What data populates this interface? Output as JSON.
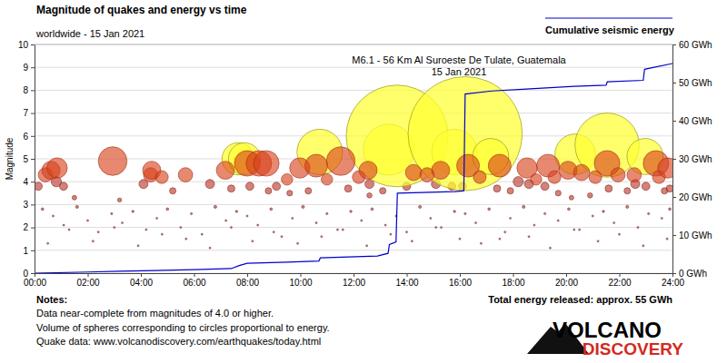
{
  "chart_data": {
    "type": "scatter",
    "title": "Magnitude of quakes and energy vs time",
    "subtitle": "worldwide - 15 Jan 2021",
    "ylabel": "Magnitude",
    "annotations": [
      "M6.1 - 56 Km Al Suroeste De Tulate, Guatemala",
      "15 Jan 2021"
    ],
    "notes_title": "Notes:",
    "notes": [
      "Data near-complete from magnitudes of 4.0 or higher.",
      "Volume of spheres corresponding to circles proportional to energy.",
      "Quake data: www.volcanodiscovery.com/earthquakes/today.html"
    ],
    "total_energy": "Total energy released: approx. 55 GWh",
    "logo": [
      "VOLCANO",
      "DISCOVERY"
    ],
    "grid": true,
    "legend": "top-right",
    "xlim": [
      0,
      24
    ],
    "xticks": [
      {
        "value": 0,
        "label": "00:00"
      },
      {
        "value": 2,
        "label": "02:00"
      },
      {
        "value": 4,
        "label": "04:00"
      },
      {
        "value": 6,
        "label": "06:00"
      },
      {
        "value": 8,
        "label": "08:00"
      },
      {
        "value": 10,
        "label": "10:00"
      },
      {
        "value": 12,
        "label": "12:00"
      },
      {
        "value": 14,
        "label": "14:00"
      },
      {
        "value": 16,
        "label": "16:00"
      },
      {
        "value": 18,
        "label": "18:00"
      },
      {
        "value": 20,
        "label": "20:00"
      },
      {
        "value": 22,
        "label": "22:00"
      },
      {
        "value": 24,
        "label": "24:00"
      }
    ],
    "ylim": [
      0,
      10
    ],
    "yticks": [
      0,
      1,
      2,
      3,
      4,
      5,
      6,
      7,
      8,
      9,
      10
    ],
    "y2lim": [
      0,
      60
    ],
    "y2ticks": [
      {
        "value": 0,
        "label": "0 GWh"
      },
      {
        "value": 10,
        "label": "10 GWh"
      },
      {
        "value": 20,
        "label": "20 GWh"
      },
      {
        "value": 30,
        "label": "30 GWh"
      },
      {
        "value": 40,
        "label": "40 GWh"
      },
      {
        "value": 50,
        "label": "50 GWh"
      },
      {
        "value": 60,
        "label": "60 GWh"
      }
    ],
    "series": [
      {
        "type": "scatter",
        "marker": "circle",
        "color": "#a0413c",
        "x": [
          0.3,
          0.7,
          1.1,
          1.6,
          2.0,
          2.4,
          2.9,
          3.3,
          3.7,
          4.2,
          4.6,
          5.0,
          5.5,
          5.9,
          6.3,
          6.8,
          7.2,
          7.6,
          8.0,
          8.4,
          8.9,
          9.3,
          9.7,
          10.1,
          10.6,
          11.0,
          11.4,
          11.9,
          12.3,
          12.7,
          13.2,
          13.6,
          14.0,
          14.5,
          14.9,
          15.3,
          15.8,
          16.2,
          16.6,
          17.1,
          17.5,
          17.9,
          18.4,
          18.8,
          19.2,
          19.7,
          20.1,
          20.5,
          21.0,
          21.4,
          21.8,
          22.3,
          22.7,
          23.1,
          23.6,
          23.9,
          0.5,
          1.3,
          2.2,
          3.0,
          3.9,
          4.8,
          5.7,
          6.6,
          7.4,
          8.2,
          9.0,
          9.9,
          10.8,
          11.6,
          12.5,
          13.4,
          14.2,
          15.1,
          16.0,
          16.8,
          17.7,
          18.6,
          19.4,
          20.3,
          21.2,
          22.0,
          22.9,
          23.8
        ],
        "values": [
          2.8,
          2.5,
          2.1,
          2.9,
          2.3,
          1.8,
          2.6,
          2.2,
          2.7,
          1.9,
          2.4,
          2.8,
          2.0,
          2.6,
          1.7,
          2.9,
          2.3,
          2.7,
          2.5,
          2.1,
          2.8,
          1.6,
          2.4,
          2.9,
          2.2,
          2.6,
          1.9,
          2.7,
          2.3,
          2.8,
          2.1,
          2.5,
          1.8,
          2.9,
          2.4,
          2.0,
          2.7,
          2.6,
          2.2,
          2.8,
          1.5,
          2.4,
          2.9,
          2.1,
          2.6,
          2.3,
          2.8,
          1.9,
          2.5,
          2.7,
          2.2,
          2.9,
          2.0,
          2.6,
          2.4,
          2.8,
          1.3,
          1.9,
          1.4,
          2.0,
          1.2,
          1.7,
          1.5,
          1.1,
          2.0,
          1.4,
          1.8,
          1.3,
          1.6,
          1.9,
          1.2,
          1.7,
          1.4,
          2.0,
          1.5,
          1.3,
          1.8,
          1.6,
          1.1,
          1.9,
          1.4,
          1.7,
          1.2,
          1.5
        ]
      },
      {
        "type": "scatter",
        "marker": "circle",
        "color": "#b8352a",
        "x": [
          0.14,
          0.82,
          1.09,
          1.5,
          3.2,
          4.1,
          5.2,
          6.6,
          7.4,
          8.1,
          8.8,
          9.1,
          9.6,
          10.3,
          11.8,
          12.6,
          12.6,
          13.1,
          14.0,
          15.1,
          15.7,
          16.1,
          17.4,
          17.9,
          18.2,
          18.6,
          19.2,
          19.7,
          20.2,
          20.9,
          21.6,
          22.3,
          22.6,
          23.0,
          23.7,
          23.9
        ],
        "values": [
          3.8,
          4.0,
          3.8,
          3.3,
          3.2,
          3.9,
          3.6,
          3.9,
          3.7,
          3.8,
          3.6,
          3.8,
          3.5,
          3.6,
          3.7,
          3.9,
          3.4,
          3.6,
          3.8,
          3.9,
          3.8,
          3.8,
          3.7,
          3.6,
          4.0,
          3.9,
          3.8,
          3.5,
          3.3,
          3.4,
          3.7,
          3.6,
          3.9,
          3.8,
          3.6,
          3.7
        ]
      },
      {
        "type": "scatter",
        "marker": "circle",
        "color": "#ffff33",
        "x": [
          7.66,
          7.9,
          10.73,
          13.33,
          13.64,
          15.8,
          16.2,
          17.16,
          20.34,
          21.54,
          22.97
        ],
        "values": [
          5.0,
          5.0,
          5.3,
          5.4,
          6.0,
          5.3,
          6.1,
          5.1,
          5.2,
          5.6,
          5.1
        ]
      },
      {
        "type": "scatter",
        "marker": "circle",
        "color": "#d9401a",
        "x": [
          0.41,
          0.62,
          0.85,
          2.94,
          4.37,
          4.41,
          4.79,
          5.68,
          7.18,
          8.0,
          8.44,
          8.72,
          9.5,
          9.98,
          10.6,
          11.0,
          11.52,
          12.2,
          12.55,
          14.26,
          14.77,
          15.28,
          16.31,
          16.75,
          17.5,
          18.53,
          18.87,
          19.32,
          19.56,
          20.07,
          20.58,
          21.1,
          21.54,
          21.95,
          22.56,
          23.38,
          23.49,
          23.83
        ],
        "values": [
          4.3,
          4.5,
          4.6,
          4.9,
          4.3,
          4.5,
          4.2,
          4.3,
          4.5,
          4.8,
          4.8,
          4.8,
          4.1,
          4.6,
          4.7,
          4.1,
          4.9,
          4.2,
          4.5,
          4.4,
          4.3,
          4.5,
          4.7,
          4.2,
          4.7,
          4.6,
          4.1,
          4.7,
          4.2,
          4.5,
          4.4,
          4.2,
          4.8,
          4.3,
          4.3,
          4.8,
          4.2,
          4.6
        ]
      },
      {
        "name": "Cumulative seismic energy",
        "type": "line",
        "axis": "y2",
        "color": "#0000cc",
        "line_style": "solid",
        "x": [
          0,
          2,
          3.2,
          4.5,
          6,
          7.4,
          7.7,
          8.0,
          9.5,
          10.7,
          10.75,
          12.9,
          13.3,
          13.35,
          13.6,
          13.65,
          15.8,
          16.15,
          16.2,
          17.2,
          18.5,
          20.3,
          21.5,
          21.55,
          22.9,
          22.95,
          24
        ],
        "values": [
          0,
          0.3,
          0.5,
          0.7,
          0.9,
          1.2,
          2.0,
          2.6,
          2.9,
          3.2,
          4.0,
          4.5,
          5.2,
          7.5,
          8.2,
          21.0,
          21.4,
          21.6,
          47.0,
          47.8,
          48.3,
          49.0,
          49.3,
          50.2,
          50.6,
          53.5,
          55.0
        ]
      }
    ]
  }
}
